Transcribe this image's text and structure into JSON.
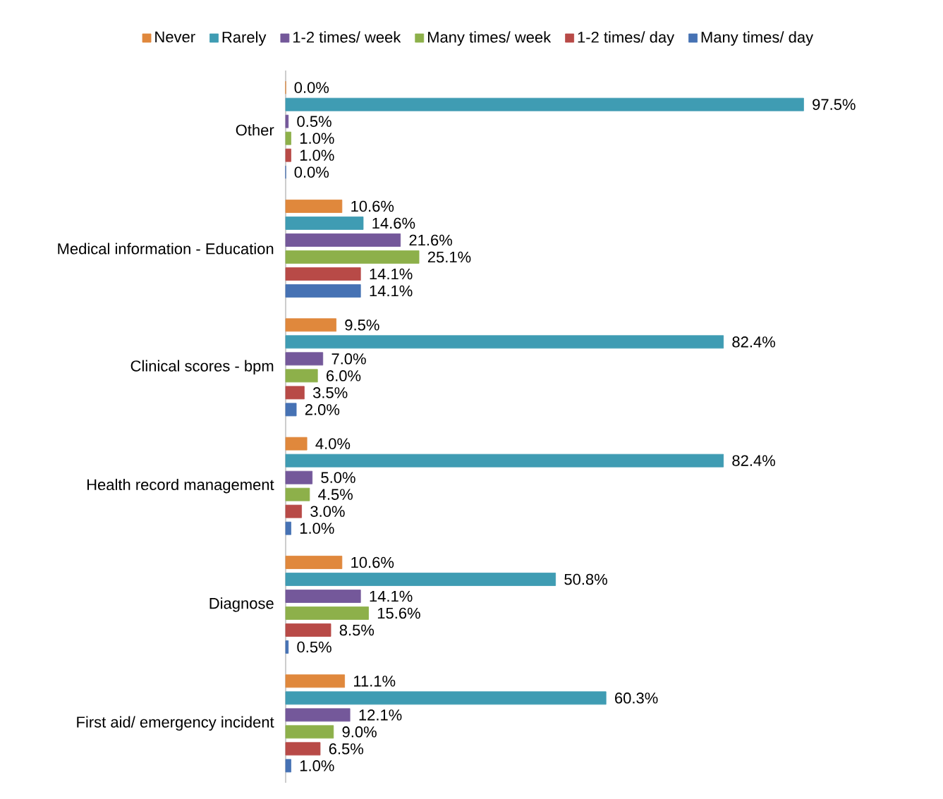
{
  "chart_data": {
    "type": "bar",
    "orientation": "horizontal",
    "legend": "top",
    "categories": [
      "Other",
      "Medical information - Education",
      "Clinical scores - bpm",
      "Health record management",
      "Diagnose",
      "First aid/ emergency incident"
    ],
    "series": [
      {
        "name": "Never",
        "color": "#e0883c",
        "values": [
          0.0,
          10.6,
          9.5,
          4.0,
          10.6,
          11.1
        ],
        "value_labels": [
          "0.0%",
          "10.6%",
          "9.5%",
          "4.0%",
          "10.6%",
          "11.1%"
        ]
      },
      {
        "name": "Rarely",
        "color": "#3f9cb3",
        "values": [
          97.5,
          14.6,
          82.4,
          82.4,
          50.8,
          60.3
        ],
        "value_labels": [
          "97.5%",
          "14.6%",
          "82.4%",
          "82.4%",
          "50.8%",
          "60.3%"
        ]
      },
      {
        "name": "1-2 times/ week",
        "color": "#74589a",
        "values": [
          0.5,
          21.6,
          7.0,
          5.0,
          14.1,
          12.1
        ],
        "value_labels": [
          "0.5%",
          "21.6%",
          "7.0%",
          "5.0%",
          "14.1%",
          "12.1%"
        ]
      },
      {
        "name": "Many times/ week",
        "color": "#8db04a",
        "values": [
          1.0,
          25.1,
          6.0,
          4.5,
          15.6,
          9.0
        ],
        "value_labels": [
          "1.0%",
          "25.1%",
          "6.0%",
          "4.5%",
          "15.6%",
          "9.0%"
        ]
      },
      {
        "name": "1-2 times/ day",
        "color": "#b84a47",
        "values": [
          1.0,
          14.1,
          3.5,
          3.0,
          8.5,
          6.5
        ],
        "value_labels": [
          "1.0%",
          "14.1%",
          "3.5%",
          "3.0%",
          "8.5%",
          "6.5%"
        ]
      },
      {
        "name": "Many times/ day",
        "color": "#4672b4",
        "values": [
          0.0,
          14.1,
          2.0,
          1.0,
          0.5,
          1.0
        ],
        "value_labels": [
          "0.0%",
          "14.1%",
          "2.0%",
          "1.0%",
          "0.5%",
          "1.0%"
        ]
      }
    ]
  }
}
